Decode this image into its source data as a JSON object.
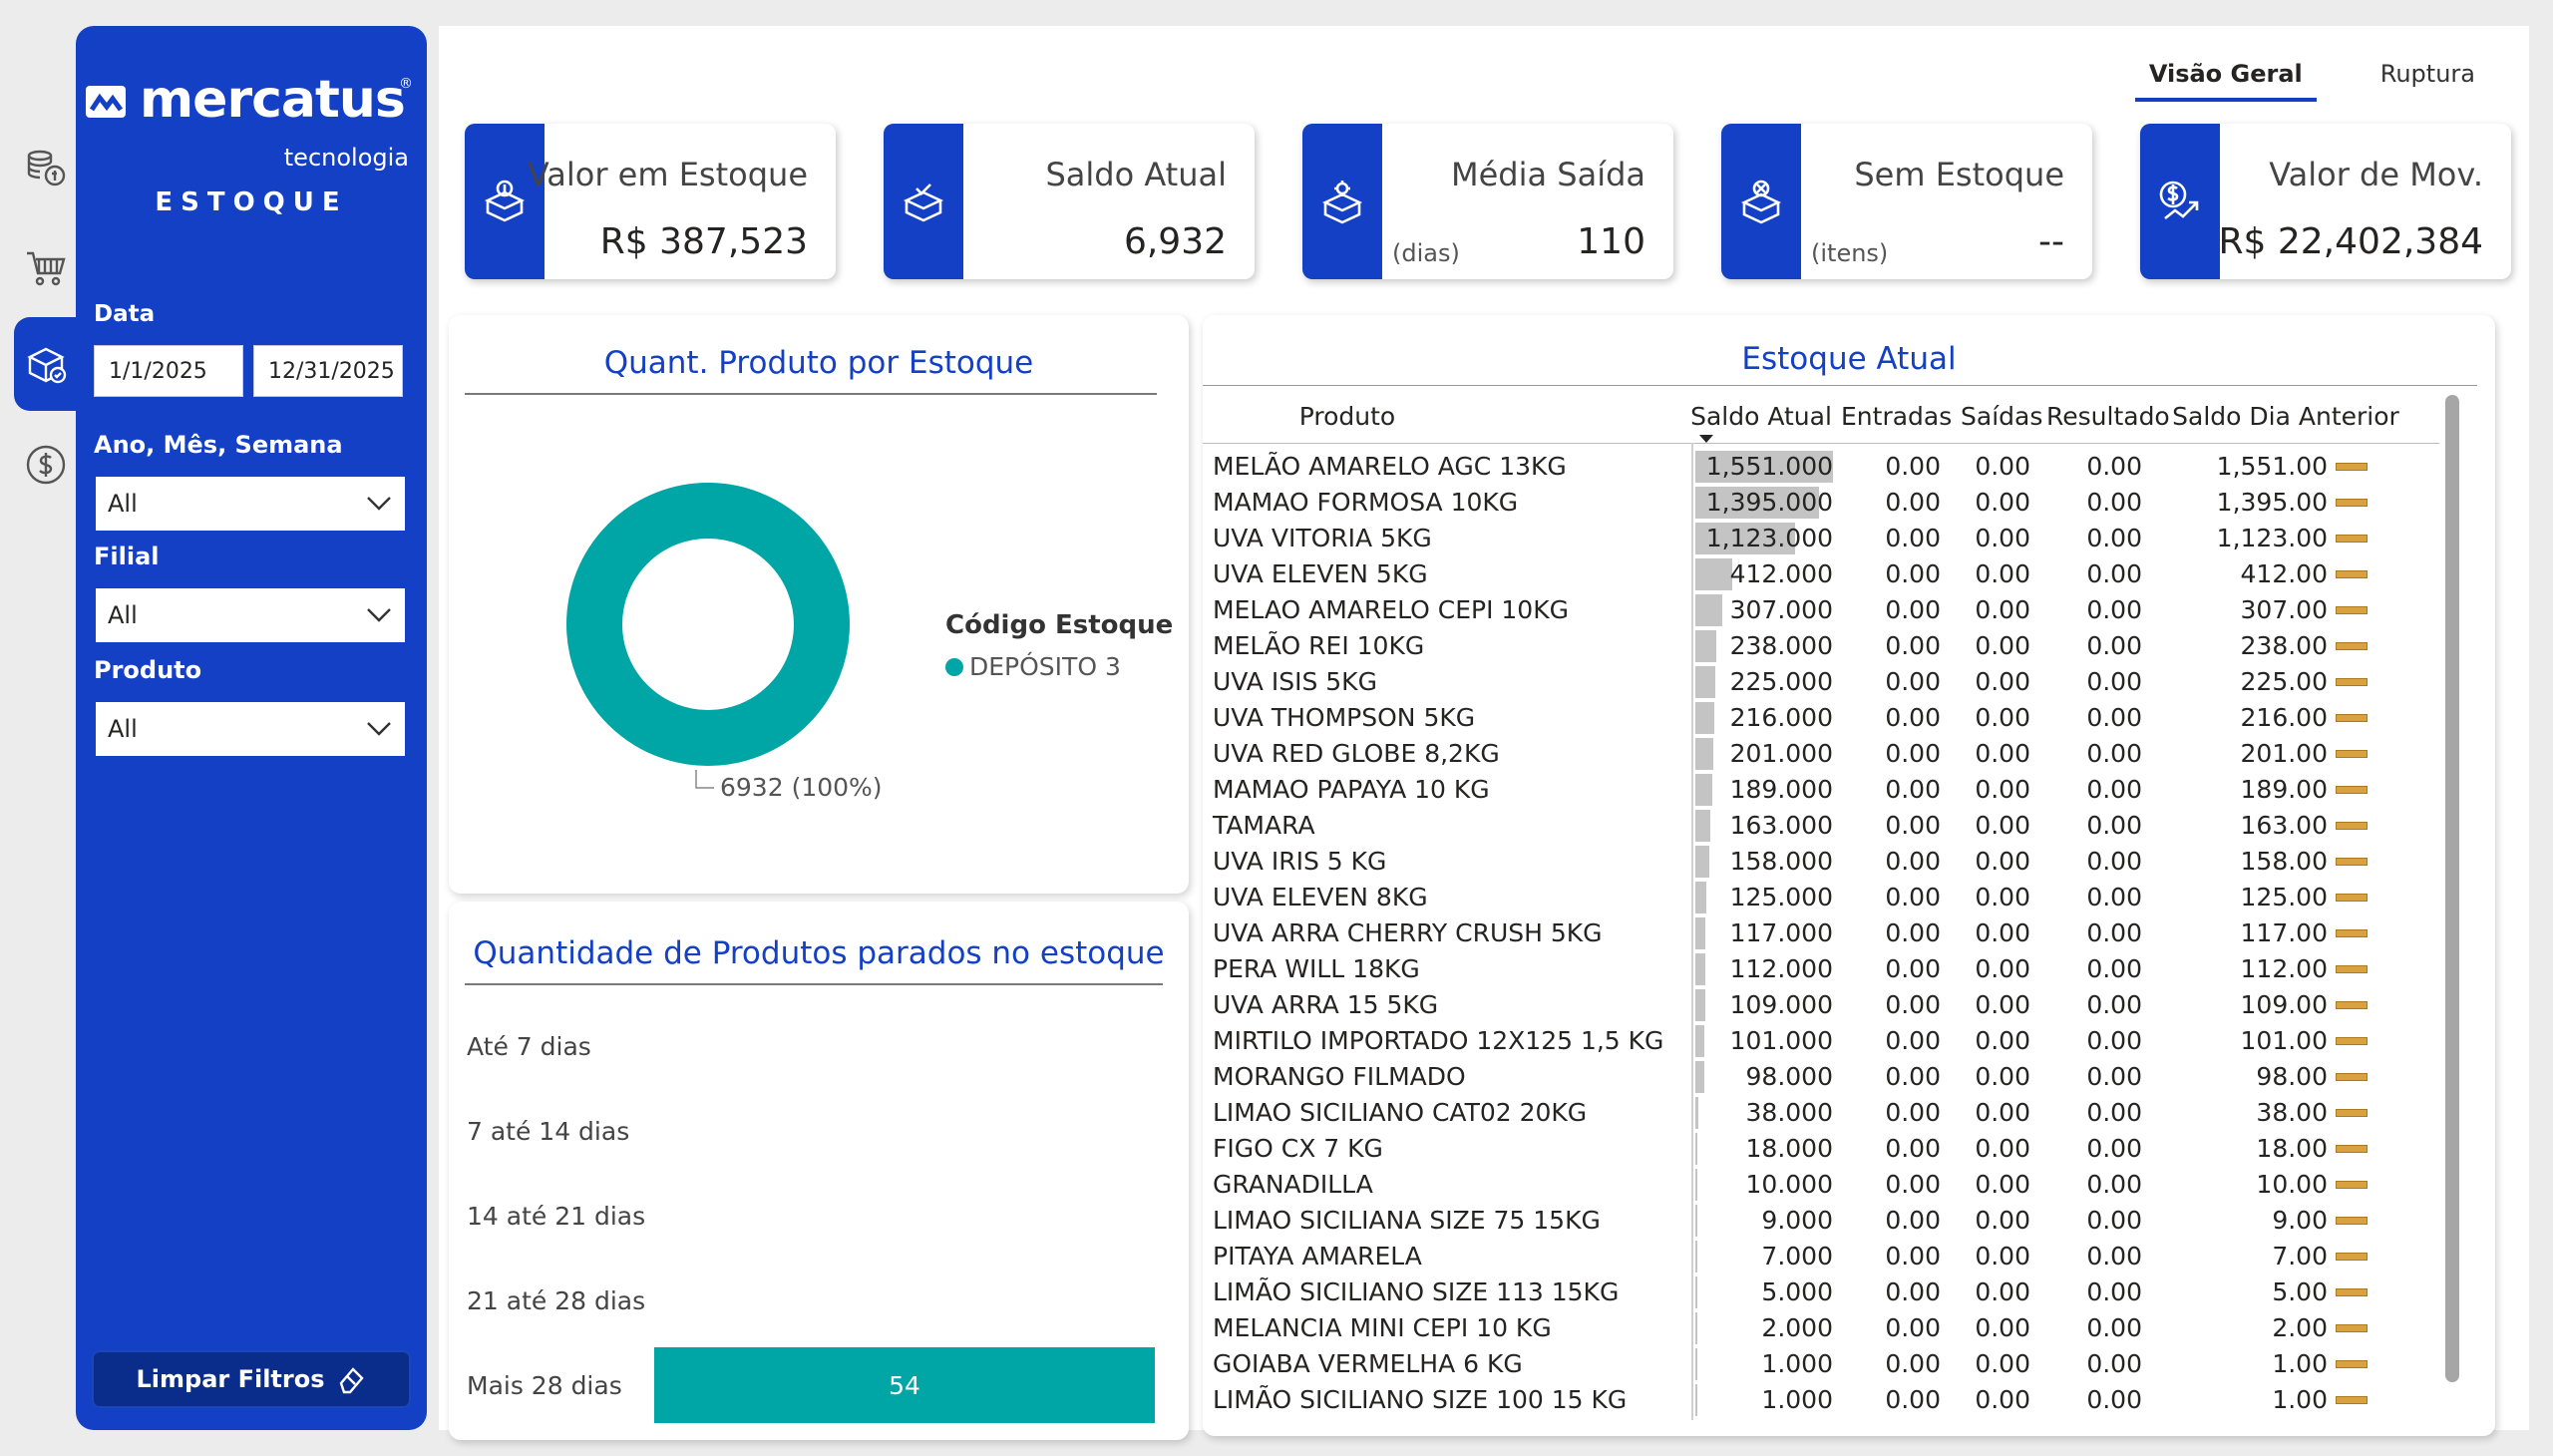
{
  "brand": {
    "name": "mercatus",
    "registered": "®",
    "tagline": "tecnologia",
    "module": "ESTOQUE"
  },
  "rail_icons": [
    "coins-stack-icon",
    "shopping-cart-icon",
    "box-check-icon",
    "dollar-circle-icon"
  ],
  "filters": {
    "date_label": "Data",
    "date_start": "1/1/2025",
    "date_end": "12/31/2025",
    "period_label": "Ano, Mês, Semana",
    "period_value": "All",
    "branch_label": "Filial",
    "branch_value": "All",
    "product_label": "Produto",
    "product_value": "All",
    "clear_label": "Limpar Filtros"
  },
  "nav": {
    "tab_overview": "Visão Geral",
    "tab_rupture": "Ruptura"
  },
  "kpis": {
    "stock_value": {
      "title": "Valor em Estoque",
      "value": "R$ 387,523"
    },
    "current_balance": {
      "title": "Saldo Atual",
      "value": "6,932"
    },
    "avg_exit": {
      "title": "Média Saída",
      "unit": "(dias)",
      "value": "110"
    },
    "no_stock": {
      "title": "Sem Estoque",
      "unit": "(itens)",
      "value": "--"
    },
    "mov_value": {
      "title": "Valor de Mov.",
      "value": "R$ 22,402,384"
    }
  },
  "donut_panel": {
    "title": "Quant. Produto por Estoque",
    "legend_title": "Código Estoque",
    "legend_item": "DEPÓSITO 3",
    "data_label": "6932 (100%)",
    "color": "#00a5a6"
  },
  "aging_panel": {
    "title": "Quantidade de Produtos parados no estoque",
    "bar_value_label": "54",
    "color": "#00a5a6"
  },
  "chart_data": [
    {
      "type": "pie",
      "title": "Quant. Produto por Estoque",
      "legend_title": "Código Estoque",
      "labels": [
        "DEPÓSITO 3"
      ],
      "values": [
        6932
      ],
      "percent": [
        100
      ]
    },
    {
      "type": "bar",
      "orientation": "horizontal",
      "title": "Quantidade de Produtos parados no estoque",
      "categories": [
        "Até 7 dias",
        "7 até 14 dias",
        "14 até 21 dias",
        "21 até 28 dias",
        "Mais 28 dias"
      ],
      "values": [
        0,
        0,
        0,
        0,
        54
      ]
    }
  ],
  "stock_table": {
    "title": "Estoque Atual",
    "columns": [
      "Produto",
      "Saldo Atual",
      "Entradas",
      "Saídas",
      "Resultado",
      "Saldo Dia Anterior"
    ],
    "max_balance": 1551,
    "rows": [
      [
        "MELÃO AMARELO AGC 13KG",
        "1,551.000",
        "0.00",
        "0.00",
        "0.00",
        "1,551.00"
      ],
      [
        "MAMAO FORMOSA 10KG",
        "1,395.000",
        "0.00",
        "0.00",
        "0.00",
        "1,395.00"
      ],
      [
        "UVA VITORIA 5KG",
        "1,123.000",
        "0.00",
        "0.00",
        "0.00",
        "1,123.00"
      ],
      [
        "UVA ELEVEN 5KG",
        "412.000",
        "0.00",
        "0.00",
        "0.00",
        "412.00"
      ],
      [
        "MELAO AMARELO CEPI 10KG",
        "307.000",
        "0.00",
        "0.00",
        "0.00",
        "307.00"
      ],
      [
        "MELÃO REI 10KG",
        "238.000",
        "0.00",
        "0.00",
        "0.00",
        "238.00"
      ],
      [
        "UVA ISIS 5KG",
        "225.000",
        "0.00",
        "0.00",
        "0.00",
        "225.00"
      ],
      [
        "UVA THOMPSON 5KG",
        "216.000",
        "0.00",
        "0.00",
        "0.00",
        "216.00"
      ],
      [
        "UVA RED GLOBE 8,2KG",
        "201.000",
        "0.00",
        "0.00",
        "0.00",
        "201.00"
      ],
      [
        "MAMAO PAPAYA 10 KG",
        "189.000",
        "0.00",
        "0.00",
        "0.00",
        "189.00"
      ],
      [
        "TAMARA",
        "163.000",
        "0.00",
        "0.00",
        "0.00",
        "163.00"
      ],
      [
        "UVA IRIS 5 KG",
        "158.000",
        "0.00",
        "0.00",
        "0.00",
        "158.00"
      ],
      [
        "UVA ELEVEN 8KG",
        "125.000",
        "0.00",
        "0.00",
        "0.00",
        "125.00"
      ],
      [
        "UVA ARRA CHERRY CRUSH 5KG",
        "117.000",
        "0.00",
        "0.00",
        "0.00",
        "117.00"
      ],
      [
        "PERA WILL 18KG",
        "112.000",
        "0.00",
        "0.00",
        "0.00",
        "112.00"
      ],
      [
        "UVA ARRA 15 5KG",
        "109.000",
        "0.00",
        "0.00",
        "0.00",
        "109.00"
      ],
      [
        "MIRTILO IMPORTADO  12X125 1,5 KG",
        "101.000",
        "0.00",
        "0.00",
        "0.00",
        "101.00"
      ],
      [
        "MORANGO FILMADO",
        "98.000",
        "0.00",
        "0.00",
        "0.00",
        "98.00"
      ],
      [
        "LIMAO SICILIANO CAT02 20KG",
        "38.000",
        "0.00",
        "0.00",
        "0.00",
        "38.00"
      ],
      [
        "FIGO CX 7 KG",
        "18.000",
        "0.00",
        "0.00",
        "0.00",
        "18.00"
      ],
      [
        "GRANADILLA",
        "10.000",
        "0.00",
        "0.00",
        "0.00",
        "10.00"
      ],
      [
        "LIMAO SICILIANA SIZE 75 15KG",
        "9.000",
        "0.00",
        "0.00",
        "0.00",
        "9.00"
      ],
      [
        "PITAYA AMARELA",
        "7.000",
        "0.00",
        "0.00",
        "0.00",
        "7.00"
      ],
      [
        "LIMÃO SICILIANO SIZE 113 15KG",
        "5.000",
        "0.00",
        "0.00",
        "0.00",
        "5.00"
      ],
      [
        "MELANCIA MINI CEPI 10 KG",
        "2.000",
        "0.00",
        "0.00",
        "0.00",
        "2.00"
      ],
      [
        "GOIABA VERMELHA 6 KG",
        "1.000",
        "0.00",
        "0.00",
        "0.00",
        "1.00"
      ],
      [
        "LIMÃO SICILIANO SIZE 100  15 KG",
        "1.000",
        "0.00",
        "0.00",
        "0.00",
        "1.00"
      ]
    ]
  },
  "colors": {
    "brand_blue": "#1340c4",
    "teal": "#00a5a6",
    "indicator": "#d9a140"
  }
}
